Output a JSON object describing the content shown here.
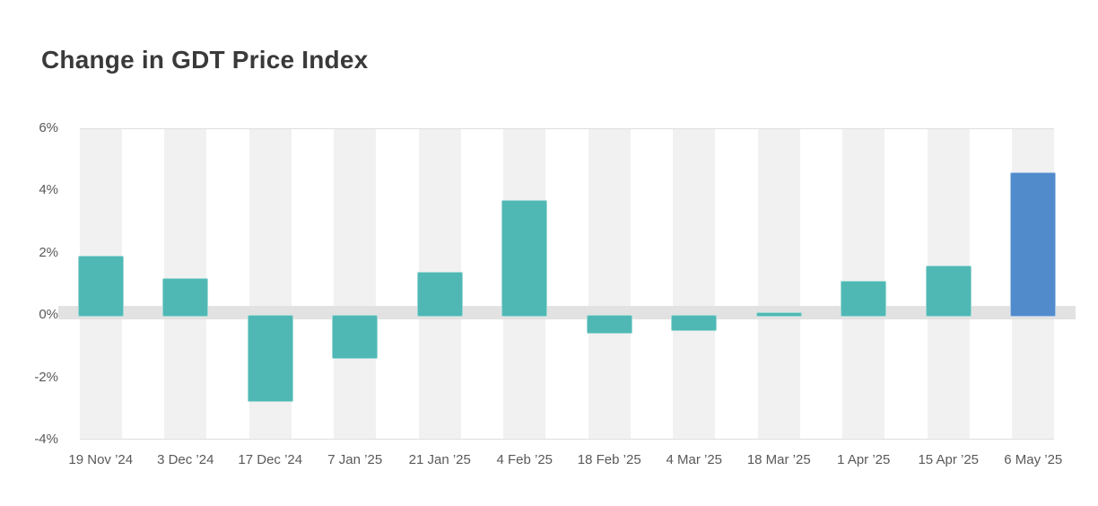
{
  "header": {
    "title": "Change in GDT Price Index"
  },
  "chart_data": {
    "type": "bar",
    "title": "Change in GDT Price Index",
    "categories": [
      "19 Nov ’24",
      "3 Dec ’24",
      "17 Dec ’24",
      "7 Jan ’25",
      "21 Jan ’25",
      "4 Feb ’25",
      "18 Feb ’25",
      "4 Mar ’25",
      "18 Mar ’25",
      "1 Apr ’25",
      "15 Apr ’25",
      "6 May ’25"
    ],
    "values": [
      1.9,
      1.2,
      -2.8,
      -1.4,
      1.4,
      3.7,
      -0.6,
      -0.5,
      0.1,
      1.1,
      1.6,
      4.6
    ],
    "unit": "%",
    "xlabel": "",
    "ylabel": "",
    "ylim": [
      -4,
      6
    ],
    "yticks": [
      6,
      4,
      2,
      0,
      -2,
      -4
    ],
    "ytick_labels": [
      "6%",
      "4%",
      "2%",
      "0%",
      "-2%",
      "-4%"
    ],
    "legend": "none",
    "grid": "alternating-category-bands",
    "colors": {
      "bar_default": "#4fb8b4",
      "bar_default_border": "#9ed8d5",
      "bar_highlight": "#528bcc",
      "bar_highlight_border": "#a9c6e8",
      "category_band": "#f1f1f1",
      "zero_band": "#e2e2e2",
      "axis_line": "#dedede",
      "axis_label": "#595959",
      "title": "#3a3a3a",
      "background": "#ffffff"
    },
    "highlight_index": 11
  }
}
